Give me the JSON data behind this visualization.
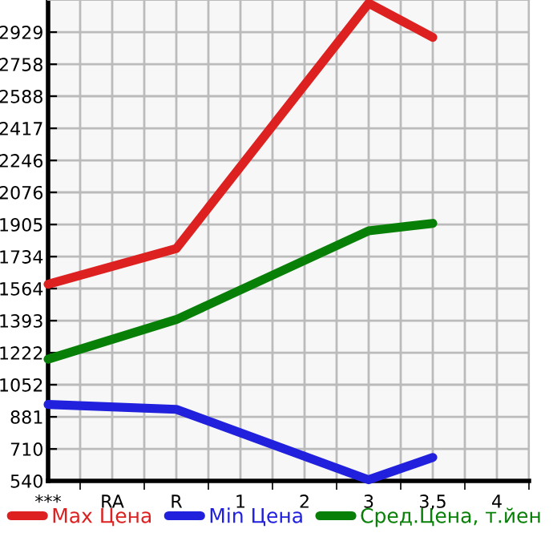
{
  "chart_data": {
    "type": "line",
    "categories": [
      "***",
      "RA",
      "R",
      "1",
      "2",
      "3",
      "3,5",
      "4"
    ],
    "ylim": [
      540,
      3100
    ],
    "yticks": [
      540,
      710,
      881,
      1052,
      1222,
      1393,
      1564,
      1734,
      1905,
      2076,
      2246,
      2417,
      2588,
      2758,
      2929
    ],
    "grid": true,
    "legend": "bottom",
    "marker": "none",
    "line_style": "solid",
    "series": [
      {
        "name": "Max Цена",
        "color": "#dd2020",
        "values": [
          1587,
          null,
          1777,
          null,
          null,
          3083,
          2901,
          null
        ]
      },
      {
        "name": "Min Цена",
        "color": "#2020dd",
        "values": [
          947,
          null,
          921,
          null,
          null,
          546,
          665,
          null
        ]
      },
      {
        "name": "Сред.Цена, т.йен",
        "color": "#088008",
        "values": [
          1188,
          null,
          1399,
          null,
          null,
          1871,
          1911,
          null
        ]
      }
    ]
  }
}
